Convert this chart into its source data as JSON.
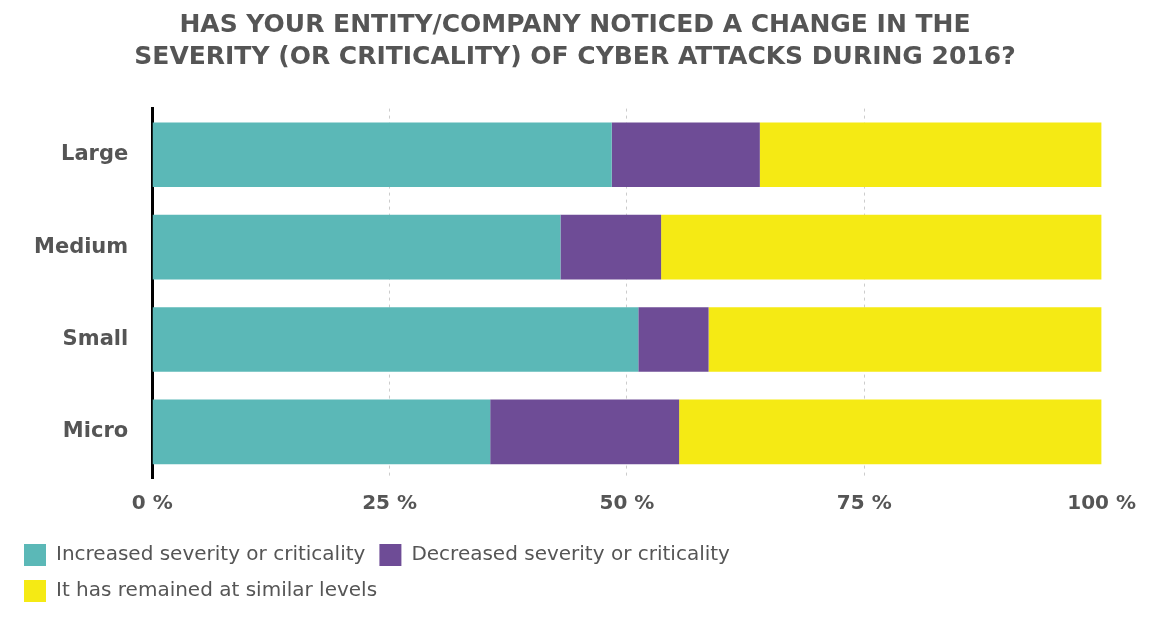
{
  "chart_data": {
    "type": "bar",
    "orientation": "horizontal",
    "stacked": true,
    "title": "HAS YOUR ENTITY/COMPANY NOTICED A CHANGE IN THE SEVERITY (OR CRITICALITY) OF CYBER ATTACKS DURING 2016?",
    "categories": [
      "Large",
      "Medium",
      "Small",
      "Micro"
    ],
    "series": [
      {
        "name": "Increased severity or criticality",
        "color": "#5bb8b7",
        "values": [
          48.4,
          43.0,
          51.2,
          35.6
        ]
      },
      {
        "name": "Decreased severity or criticality",
        "color": "#6e4c96",
        "values": [
          15.6,
          10.6,
          7.4,
          19.9
        ]
      },
      {
        "name": "It has remained at similar levels",
        "color": "#f5ea14",
        "values": [
          36.0,
          46.4,
          41.4,
          44.5
        ]
      }
    ],
    "xlim": [
      0,
      100
    ],
    "xticks": [
      {
        "value": 0,
        "label": "0 %"
      },
      {
        "value": 25,
        "label": "25 %"
      },
      {
        "value": 50,
        "label": "50 %"
      },
      {
        "value": 75,
        "label": "75 %"
      },
      {
        "value": 100,
        "label": "100 %"
      }
    ],
    "grid": "x",
    "legend": "bottom"
  }
}
